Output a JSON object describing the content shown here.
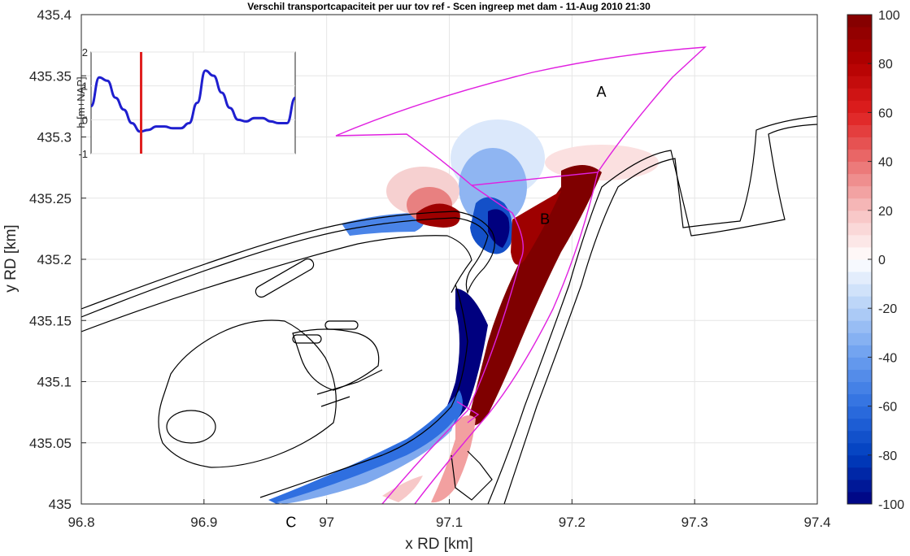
{
  "chart_data": [
    {
      "type": "heatmap",
      "title": "Verschil transportcapaciteit per uur tov ref - Scen ingreep met dam - 11-Aug 2010 21:30",
      "xlabel": "x RD [km]",
      "ylabel": "y RD [km]",
      "xlim": [
        96.8,
        97.4
      ],
      "ylim": [
        435.0,
        435.4
      ],
      "x_ticks": [
        "96.8",
        "96.9",
        "97",
        "97.1",
        "97.2",
        "97.3",
        "97.4"
      ],
      "y_ticks": [
        "435",
        "435.05",
        "435.1",
        "435.15",
        "435.2",
        "435.25",
        "435.3",
        "435.35",
        "435.4"
      ],
      "grid": true,
      "colorbar": {
        "clim": [
          -100,
          100
        ],
        "ticks": [
          "-100",
          "-80",
          "-60",
          "-40",
          "-20",
          "0",
          "20",
          "40",
          "60",
          "80",
          "100"
        ],
        "colors": [
          "#00007f",
          "#003fbf",
          "#2f6fe0",
          "#6a9eef",
          "#b4d0f7",
          "#ffffff",
          "#f7c0c0",
          "#ea7070",
          "#e02020",
          "#b30000",
          "#7f0000"
        ]
      },
      "annotations": [
        {
          "text": "A",
          "x": 97.224,
          "y": 435.333
        },
        {
          "text": "B",
          "x": 97.178,
          "y": 435.229
        },
        {
          "text": "C",
          "x": 96.971,
          "y": 434.981
        }
      ],
      "polygons_color": "#e020e0",
      "contour_color": "#000000"
    },
    {
      "type": "line",
      "ylabel": "h [m+NAP]",
      "ylim": [
        -1,
        2
      ],
      "y_ticks": [
        "-1",
        "0",
        "1",
        "2"
      ],
      "grid": true,
      "series_color": "#1f1fcf",
      "marker_color": "#e02020",
      "marker_x": 0.245,
      "x": [
        0.0,
        0.04,
        0.08,
        0.12,
        0.16,
        0.2,
        0.24,
        0.28,
        0.32,
        0.36,
        0.4,
        0.44,
        0.48,
        0.52,
        0.56,
        0.6,
        0.64,
        0.68,
        0.72,
        0.76,
        0.8,
        0.84,
        0.88,
        0.92,
        0.96,
        1.0
      ],
      "y": [
        0.4,
        1.25,
        1.15,
        0.65,
        0.3,
        -0.1,
        -0.35,
        -0.3,
        -0.2,
        -0.2,
        -0.25,
        -0.25,
        -0.1,
        0.5,
        1.45,
        1.3,
        0.8,
        0.35,
        0.0,
        -0.05,
        0.05,
        0.05,
        -0.05,
        -0.1,
        -0.1,
        0.65
      ]
    }
  ]
}
